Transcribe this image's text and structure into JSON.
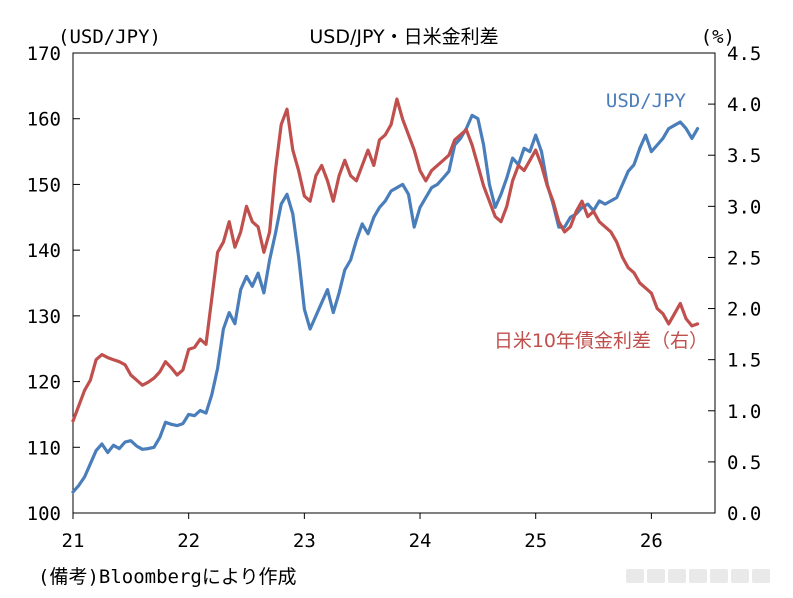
{
  "chart_data": {
    "type": "line",
    "title": "USD/JPY・日米金利差",
    "left_axis_unit": "(USD/JPY)",
    "right_axis_unit": "(%)",
    "note": "(備考)Bloombergにより作成",
    "x_ticks": [
      "21",
      "22",
      "23",
      "24",
      "25",
      "26"
    ],
    "xlim": [
      21,
      26.55
    ],
    "y_left": {
      "ticks": [
        "100",
        "110",
        "120",
        "130",
        "140",
        "150",
        "160",
        "170"
      ],
      "lim": [
        100,
        170
      ]
    },
    "y_right": {
      "ticks": [
        "0.0",
        "0.5",
        "1.0",
        "1.5",
        "2.0",
        "2.5",
        "3.0",
        "3.5",
        "4.0",
        "4.5"
      ],
      "lim": [
        0,
        4.5
      ]
    },
    "grid": false,
    "series": [
      {
        "name": "USD/JPY",
        "axis": "left",
        "color": "#4a7ebb",
        "label": "USD/JPY",
        "points": [
          [
            21.0,
            103.2
          ],
          [
            21.05,
            104.2
          ],
          [
            21.1,
            105.5
          ],
          [
            21.15,
            107.5
          ],
          [
            21.2,
            109.5
          ],
          [
            21.25,
            110.5
          ],
          [
            21.3,
            109.2
          ],
          [
            21.35,
            110.3
          ],
          [
            21.4,
            109.8
          ],
          [
            21.45,
            110.8
          ],
          [
            21.5,
            111.0
          ],
          [
            21.55,
            110.2
          ],
          [
            21.6,
            109.7
          ],
          [
            21.65,
            109.8
          ],
          [
            21.7,
            110.0
          ],
          [
            21.75,
            111.5
          ],
          [
            21.8,
            113.8
          ],
          [
            21.85,
            113.5
          ],
          [
            21.9,
            113.3
          ],
          [
            21.95,
            113.6
          ],
          [
            22.0,
            115.0
          ],
          [
            22.05,
            114.8
          ],
          [
            22.1,
            115.6
          ],
          [
            22.15,
            115.2
          ],
          [
            22.2,
            118.0
          ],
          [
            22.25,
            122.0
          ],
          [
            22.3,
            128.0
          ],
          [
            22.35,
            130.5
          ],
          [
            22.4,
            128.8
          ],
          [
            22.45,
            134.0
          ],
          [
            22.5,
            136.0
          ],
          [
            22.55,
            134.5
          ],
          [
            22.6,
            136.5
          ],
          [
            22.65,
            133.5
          ],
          [
            22.7,
            138.5
          ],
          [
            22.75,
            142.5
          ],
          [
            22.8,
            147.0
          ],
          [
            22.85,
            148.5
          ],
          [
            22.9,
            145.5
          ],
          [
            22.95,
            139.0
          ],
          [
            23.0,
            131.0
          ],
          [
            23.05,
            128.0
          ],
          [
            23.1,
            130.0
          ],
          [
            23.15,
            132.0
          ],
          [
            23.2,
            134.0
          ],
          [
            23.25,
            130.5
          ],
          [
            23.3,
            133.5
          ],
          [
            23.35,
            137.0
          ],
          [
            23.4,
            138.5
          ],
          [
            23.45,
            141.5
          ],
          [
            23.5,
            144.0
          ],
          [
            23.55,
            142.5
          ],
          [
            23.6,
            145.0
          ],
          [
            23.65,
            146.5
          ],
          [
            23.7,
            147.5
          ],
          [
            23.75,
            149.0
          ],
          [
            23.8,
            149.5
          ],
          [
            23.85,
            150.0
          ],
          [
            23.9,
            148.5
          ],
          [
            23.95,
            143.5
          ],
          [
            24.0,
            146.5
          ],
          [
            24.05,
            148.0
          ],
          [
            24.1,
            149.5
          ],
          [
            24.15,
            150.0
          ],
          [
            24.2,
            151.0
          ],
          [
            24.25,
            152.0
          ],
          [
            24.3,
            156.0
          ],
          [
            24.35,
            157.0
          ],
          [
            24.4,
            158.5
          ],
          [
            24.45,
            160.5
          ],
          [
            24.5,
            160.0
          ],
          [
            24.55,
            156.0
          ],
          [
            24.6,
            150.0
          ],
          [
            24.65,
            146.5
          ],
          [
            24.7,
            148.5
          ],
          [
            24.75,
            151.0
          ],
          [
            24.8,
            154.0
          ],
          [
            24.85,
            153.0
          ],
          [
            24.9,
            155.5
          ],
          [
            24.95,
            155.0
          ],
          [
            25.0,
            157.5
          ],
          [
            25.05,
            155.0
          ],
          [
            25.1,
            150.0
          ],
          [
            25.15,
            147.0
          ],
          [
            25.2,
            143.5
          ],
          [
            25.25,
            143.5
          ],
          [
            25.3,
            145.0
          ],
          [
            25.35,
            145.5
          ],
          [
            25.4,
            146.5
          ],
          [
            25.45,
            147.0
          ],
          [
            25.5,
            146.0
          ],
          [
            25.55,
            147.5
          ],
          [
            25.6,
            147.0
          ],
          [
            25.65,
            147.5
          ],
          [
            25.7,
            148.0
          ],
          [
            25.75,
            150.0
          ],
          [
            25.8,
            152.0
          ],
          [
            25.85,
            153.0
          ],
          [
            25.9,
            155.5
          ],
          [
            25.95,
            157.5
          ],
          [
            26.0,
            155.0
          ],
          [
            26.05,
            156.0
          ],
          [
            26.1,
            157.0
          ],
          [
            26.15,
            158.5
          ],
          [
            26.2,
            159.0
          ],
          [
            26.25,
            159.5
          ],
          [
            26.3,
            158.5
          ],
          [
            26.35,
            157.0
          ],
          [
            26.4,
            158.5
          ]
        ]
      },
      {
        "name": "日米10年債金利差（右）",
        "axis": "right",
        "color": "#c0504d",
        "label": "日米10年債金利差（右）",
        "points": [
          [
            21.0,
            0.9
          ],
          [
            21.05,
            1.05
          ],
          [
            21.1,
            1.2
          ],
          [
            21.15,
            1.3
          ],
          [
            21.2,
            1.5
          ],
          [
            21.25,
            1.55
          ],
          [
            21.3,
            1.52
          ],
          [
            21.35,
            1.5
          ],
          [
            21.4,
            1.48
          ],
          [
            21.45,
            1.45
          ],
          [
            21.5,
            1.35
          ],
          [
            21.55,
            1.3
          ],
          [
            21.6,
            1.25
          ],
          [
            21.65,
            1.28
          ],
          [
            21.7,
            1.32
          ],
          [
            21.75,
            1.38
          ],
          [
            21.8,
            1.48
          ],
          [
            21.85,
            1.42
          ],
          [
            21.9,
            1.35
          ],
          [
            21.95,
            1.4
          ],
          [
            22.0,
            1.6
          ],
          [
            22.05,
            1.62
          ],
          [
            22.1,
            1.7
          ],
          [
            22.15,
            1.65
          ],
          [
            22.2,
            2.1
          ],
          [
            22.25,
            2.55
          ],
          [
            22.3,
            2.65
          ],
          [
            22.35,
            2.85
          ],
          [
            22.4,
            2.6
          ],
          [
            22.45,
            2.75
          ],
          [
            22.5,
            3.0
          ],
          [
            22.55,
            2.85
          ],
          [
            22.6,
            2.8
          ],
          [
            22.65,
            2.55
          ],
          [
            22.7,
            2.75
          ],
          [
            22.75,
            3.35
          ],
          [
            22.8,
            3.8
          ],
          [
            22.85,
            3.95
          ],
          [
            22.9,
            3.55
          ],
          [
            22.95,
            3.35
          ],
          [
            23.0,
            3.1
          ],
          [
            23.05,
            3.05
          ],
          [
            23.1,
            3.3
          ],
          [
            23.15,
            3.4
          ],
          [
            23.2,
            3.25
          ],
          [
            23.25,
            3.05
          ],
          [
            23.3,
            3.3
          ],
          [
            23.35,
            3.45
          ],
          [
            23.4,
            3.3
          ],
          [
            23.45,
            3.25
          ],
          [
            23.5,
            3.4
          ],
          [
            23.55,
            3.55
          ],
          [
            23.6,
            3.4
          ],
          [
            23.65,
            3.65
          ],
          [
            23.7,
            3.7
          ],
          [
            23.75,
            3.8
          ],
          [
            23.8,
            4.05
          ],
          [
            23.85,
            3.85
          ],
          [
            23.9,
            3.7
          ],
          [
            23.95,
            3.55
          ],
          [
            24.0,
            3.35
          ],
          [
            24.05,
            3.25
          ],
          [
            24.1,
            3.35
          ],
          [
            24.15,
            3.4
          ],
          [
            24.2,
            3.45
          ],
          [
            24.25,
            3.5
          ],
          [
            24.3,
            3.65
          ],
          [
            24.35,
            3.7
          ],
          [
            24.4,
            3.75
          ],
          [
            24.45,
            3.6
          ],
          [
            24.5,
            3.4
          ],
          [
            24.55,
            3.2
          ],
          [
            24.6,
            3.05
          ],
          [
            24.65,
            2.9
          ],
          [
            24.7,
            2.85
          ],
          [
            24.75,
            3.0
          ],
          [
            24.8,
            3.25
          ],
          [
            24.85,
            3.4
          ],
          [
            24.9,
            3.35
          ],
          [
            24.95,
            3.45
          ],
          [
            25.0,
            3.55
          ],
          [
            25.05,
            3.4
          ],
          [
            25.1,
            3.2
          ],
          [
            25.15,
            3.05
          ],
          [
            25.2,
            2.85
          ],
          [
            25.25,
            2.75
          ],
          [
            25.3,
            2.8
          ],
          [
            25.35,
            2.95
          ],
          [
            25.4,
            3.05
          ],
          [
            25.45,
            2.9
          ],
          [
            25.5,
            2.95
          ],
          [
            25.55,
            2.85
          ],
          [
            25.6,
            2.8
          ],
          [
            25.65,
            2.75
          ],
          [
            25.7,
            2.65
          ],
          [
            25.75,
            2.5
          ],
          [
            25.8,
            2.4
          ],
          [
            25.85,
            2.35
          ],
          [
            25.9,
            2.25
          ],
          [
            25.95,
            2.2
          ],
          [
            26.0,
            2.15
          ],
          [
            26.05,
            2.0
          ],
          [
            26.1,
            1.95
          ],
          [
            26.15,
            1.85
          ],
          [
            26.2,
            1.95
          ],
          [
            26.25,
            2.05
          ],
          [
            26.3,
            1.9
          ],
          [
            26.35,
            1.83
          ],
          [
            26.4,
            1.85
          ]
        ]
      }
    ]
  }
}
